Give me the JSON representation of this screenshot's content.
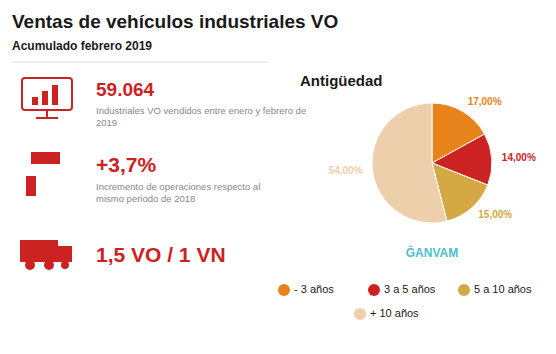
{
  "chart_data": {
    "type": "pie",
    "title": "Ventas de vehículos industriales VO",
    "subtitle": "Acumulado febrero 2019",
    "annotations": [
      "59.064",
      "Industriales VO vendidos entre enero y febrero de\n2019",
      "+3,7%",
      "Incremento de operaciones respecto al\nmismo periodo de 2018",
      "1,5 VO / 1 VN",
      "Antigüedad",
      "ĞANVAM"
    ],
    "categories": [
      "- 3 años",
      "3 a 5 años",
      "5 a 10 años",
      "+ 10 años"
    ],
    "values": [
      17,
      14,
      15,
      54
    ],
    "value_labels": [
      "17,00%",
      "14,00%",
      "15,00%",
      "54,00%"
    ],
    "colors": [
      "#E8821A",
      "#CC2222",
      "#D4A843",
      "#EDCFAB"
    ],
    "data_labels": true,
    "legend": "bottom"
  }
}
